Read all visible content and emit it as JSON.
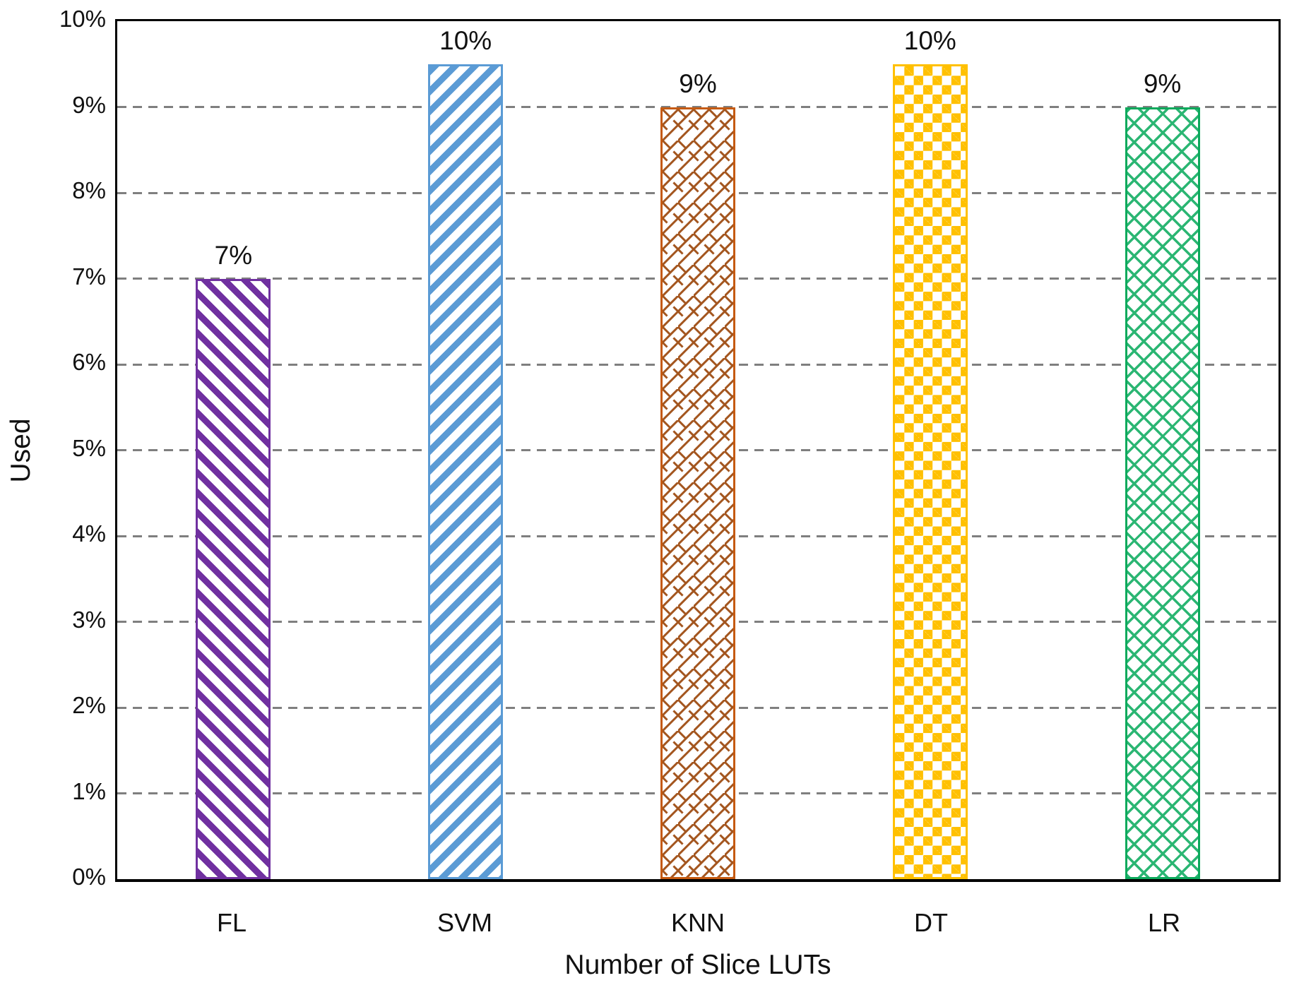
{
  "chart_data": {
    "type": "bar",
    "title": "",
    "xlabel": "Number of Slice LUTs",
    "ylabel": "Used",
    "categories": [
      "FL",
      "SVM",
      "KNN",
      "DT",
      "LR"
    ],
    "values": [
      7,
      9.5,
      9,
      9.5,
      9
    ],
    "data_labels": [
      "7%",
      "10%",
      "9%",
      "10%",
      "9%"
    ],
    "ylim": [
      0,
      10
    ],
    "y_ticks": [
      "0%",
      "1%",
      "2%",
      "3%",
      "4%",
      "5%",
      "6%",
      "7%",
      "8%",
      "9%",
      "10%"
    ],
    "grid": "horizontal-dashed",
    "legend_position": "none",
    "series_styles": [
      {
        "category": "FL",
        "pattern": "diagonal-stripes-down",
        "color": "#7030A0",
        "border_color": "#7030A0"
      },
      {
        "category": "SVM",
        "pattern": "diagonal-stripes-up",
        "color": "#5B9BD5",
        "border_color": "#5B9BD5"
      },
      {
        "category": "KNN",
        "pattern": "diagonal-brick",
        "color": "#A3551E",
        "border_color": "#C55A11"
      },
      {
        "category": "DT",
        "pattern": "checkerboard",
        "color": "#FFC000",
        "border_color": "#FFC000"
      },
      {
        "category": "LR",
        "pattern": "diamond-lattice",
        "color": "#2BB673",
        "border_color": "#0CA95C"
      }
    ],
    "style_colors": {
      "gridline": "#7F7F7F",
      "axis": "#000000",
      "text": "#111111",
      "background": "#FFFFFF"
    }
  }
}
